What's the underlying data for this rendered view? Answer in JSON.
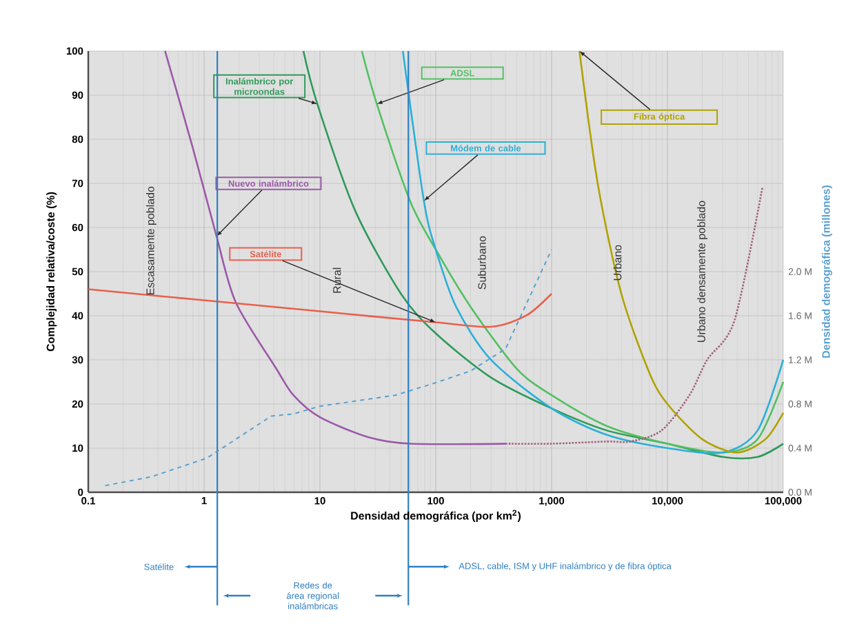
{
  "chart_data": {
    "type": "line",
    "xlabel": "Densidad demográfica (por km$^{2}$)",
    "ylabel": "Complejidad relativa/coste (%)",
    "y2label": "Densidad demográfica (millones)",
    "log": "x",
    "grid": true,
    "marker": "none",
    "xlim": [
      0.1,
      100000
    ],
    "xticks": [
      0.1,
      1,
      10,
      100,
      {
        "value": 1000,
        "label": "1,000"
      },
      {
        "value": 10000,
        "label": "10,000"
      },
      {
        "value": 100000,
        "label": "100,000"
      }
    ],
    "ylim": [
      0,
      100
    ],
    "yticks": [
      0,
      10,
      20,
      30,
      40,
      50,
      60,
      70,
      80,
      90,
      100
    ],
    "y2lim": [
      0,
      4
    ],
    "y2ticks": [
      {
        "value": 0,
        "label": "0.0 M"
      },
      {
        "value": 0.4,
        "label": "0.4 M"
      },
      {
        "value": 0.8,
        "label": "0.8 M"
      },
      {
        "value": 1.2,
        "label": "1.2 M"
      },
      {
        "value": 1.6,
        "label": "1.6 M"
      },
      {
        "value": 2.0,
        "label": "2.0 M"
      }
    ],
    "series": [
      {
        "name": "Inalámbrico por microondas",
        "color": "#2e9a5a",
        "x": [
          7.2,
          9.5,
          20,
          50,
          100,
          300,
          1000,
          3000,
          10000,
          30000,
          60000,
          100000
        ],
        "values": [
          100,
          88,
          64,
          45,
          36,
          26,
          19,
          14,
          11,
          8,
          8,
          11
        ]
      },
      {
        "name": "ADSL",
        "color": "#52c060",
        "x": [
          23,
          31,
          60,
          100,
          200,
          500,
          1000,
          3000,
          10000,
          30000,
          60000,
          100000
        ],
        "values": [
          100,
          88,
          66,
          55,
          42,
          28,
          22,
          15,
          11,
          9,
          12,
          25
        ]
      },
      {
        "name": "Módem de cable",
        "color": "#2ab0d8",
        "x": [
          52,
          79,
          100,
          150,
          300,
          1000,
          3000,
          10000,
          30000,
          60000,
          100000
        ],
        "values": [
          100,
          66,
          55,
          42,
          30,
          19,
          13,
          10,
          9,
          14,
          30
        ]
      },
      {
        "name": "Fibra óptica",
        "color": "#b0a200",
        "x": [
          1740,
          2500,
          4000,
          7000,
          10000,
          20000,
          40000,
          70000,
          100000
        ],
        "values": [
          100,
          70,
          45,
          27,
          20,
          12,
          9,
          12,
          18
        ]
      },
      {
        "name": "Nuevo inalámbrico",
        "color": "#9b59a8",
        "x": [
          0.46,
          0.8,
          1.28,
          1.88,
          4.2,
          5.9,
          10,
          26,
          60,
          400
        ],
        "values": [
          100,
          78,
          58,
          43,
          28,
          22,
          17,
          12.5,
          11,
          11
        ]
      },
      {
        "name": "Satélite",
        "color": "#e8604c",
        "x": [
          0.1,
          1,
          10,
          100,
          300,
          600,
          1000
        ],
        "values": [
          46,
          43.5,
          41,
          38.5,
          37.5,
          40,
          45
        ]
      },
      {
        "color": "#a0607a",
        "line_style": "dotted",
        "x": [
          400,
          1000,
          3000,
          4800,
          8900,
          15500,
          22000,
          38000,
          66000
        ],
        "values": [
          11,
          11,
          11.5,
          11.5,
          14,
          22,
          30,
          39,
          69
        ]
      },
      {
        "color": "#5aa0d0",
        "line_style": "dashed",
        "axis": "y2",
        "x": [
          0.14,
          0.35,
          1.06,
          3.8,
          5.9,
          10,
          45,
          98,
          200,
          400,
          1000
        ],
        "values": [
          0.06,
          0.14,
          0.31,
          0.69,
          0.71,
          0.78,
          0.88,
          0.99,
          1.1,
          1.3,
          2.2
        ]
      }
    ],
    "ref_lines": [
      {
        "axis": "x",
        "value": 1.3,
        "color": "#2f7fc0"
      },
      {
        "axis": "x",
        "value": 58,
        "color": "#2f7fc0"
      }
    ],
    "annotations": [
      "Escasamente poblado",
      "Rural",
      "Suburbano",
      "Urbano",
      "Urbano densamente poblado",
      "Satélite",
      "Redes de área regional inalámbricas",
      "ADSL, cable, ISM y UHF inalámbrico y de fibra óptica"
    ]
  }
}
